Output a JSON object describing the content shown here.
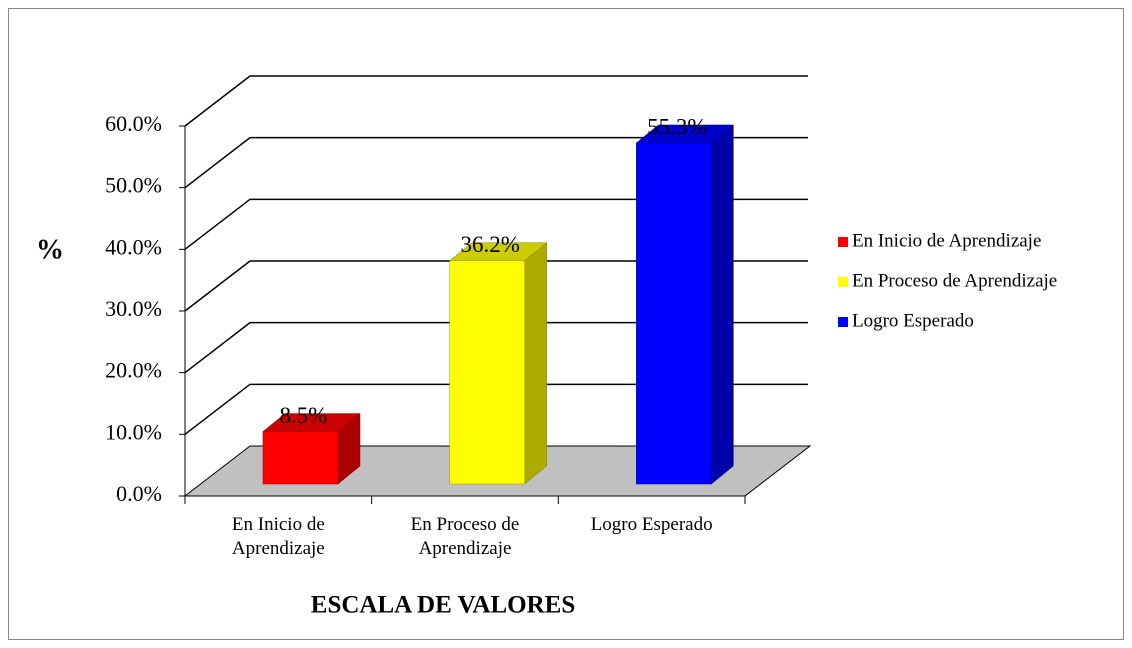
{
  "chart_data": {
    "type": "bar3d",
    "categories": [
      "En Inicio de Aprendizaje",
      "En Proceso de Aprendizaje",
      "Logro Esperado"
    ],
    "values": [
      8.5,
      36.2,
      55.3
    ],
    "value_labels": [
      "8.5%",
      "36.2%",
      "55.3%"
    ],
    "colors": [
      "#ff0000",
      "#ffff00",
      "#0000ff"
    ],
    "ylabel": "%",
    "xlabel": "ESCALA DE VALORES",
    "ylim": [
      0,
      60
    ],
    "yticks": [
      {
        "value": 0,
        "label": "0.0%"
      },
      {
        "value": 10,
        "label": "10.0%"
      },
      {
        "value": 20,
        "label": "20.0%"
      },
      {
        "value": 30,
        "label": "30.0%"
      },
      {
        "value": 40,
        "label": "40.0%"
      },
      {
        "value": 50,
        "label": "50.0%"
      },
      {
        "value": 60,
        "label": "60.0%"
      }
    ],
    "grid": true,
    "legend": "right"
  }
}
